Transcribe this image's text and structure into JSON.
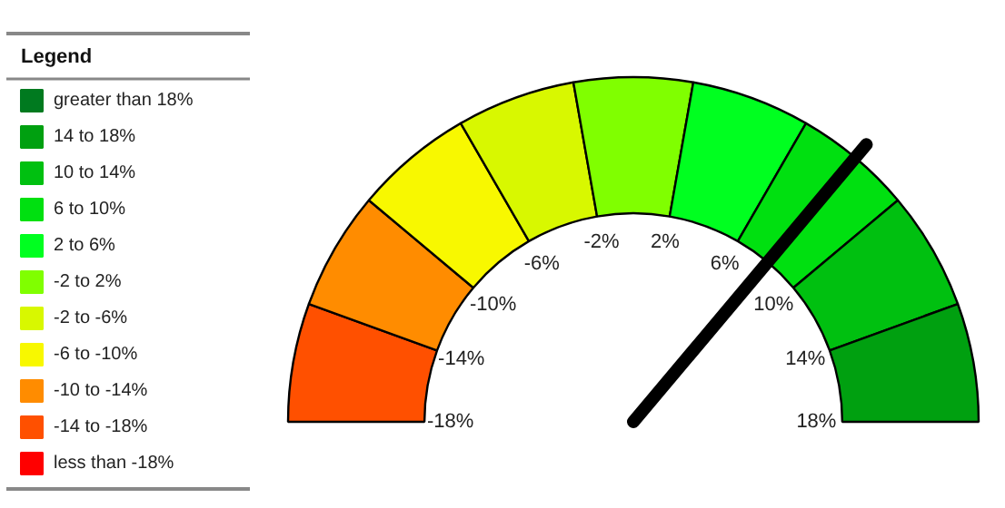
{
  "chart_data": {
    "type": "donut",
    "legend_title": "Legend",
    "legend": "left",
    "categories": [
      "greater than 18%",
      "14 to 18%",
      "10 to 14%",
      "6 to 10%",
      "2 to 6%",
      "-2 to 2%",
      "-2 to -6%",
      "-6 to -10%",
      "-10 to -14%",
      "-14 to -18%",
      "less than -18%"
    ],
    "colors": [
      "#007a1f",
      "#00a010",
      "#00c010",
      "#00e010",
      "#00ff20",
      "#80ff00",
      "#d8f800",
      "#f8f800",
      "#ff8c00",
      "#ff5000",
      "#ff0000"
    ],
    "values": [
      0,
      11.1,
      11.1,
      11.1,
      11.1,
      11.1,
      11.1,
      11.1,
      11.1,
      11.1,
      0
    ],
    "needle": "6 to 10%",
    "annotations": [
      "-18%",
      "-14%",
      "-10%",
      "-6%",
      "-2%",
      "2%",
      "6%",
      "10%",
      "14%",
      "18%"
    ]
  }
}
